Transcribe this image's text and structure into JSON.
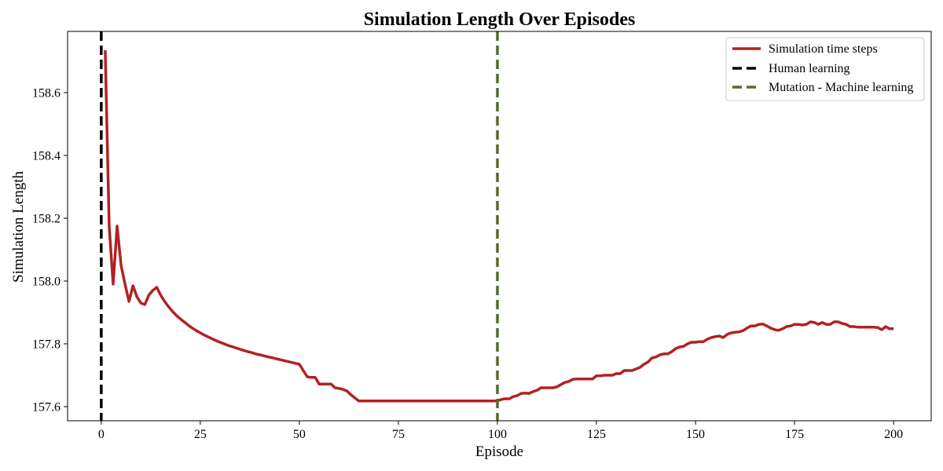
{
  "chart_data": {
    "type": "line",
    "title": "Simulation Length Over Episodes",
    "xlabel": "Episode",
    "ylabel": "Simulation Length",
    "xlim": [
      -8.5,
      209.5
    ],
    "ylim": [
      157.555,
      158.795
    ],
    "xticks": [
      0,
      25,
      50,
      75,
      100,
      125,
      150,
      175,
      200
    ],
    "yticks": [
      157.6,
      157.8,
      158.0,
      158.2,
      158.4,
      158.6
    ],
    "ytick_labels": [
      "157.6",
      "157.8",
      "158.0",
      "158.2",
      "158.4",
      "158.6"
    ],
    "grid": false,
    "legend_position": "top-right",
    "colors": {
      "series": "#b22222",
      "human_line": "#000000",
      "mutation_line": "#556b2f"
    },
    "series": [
      {
        "name": "Simulation time steps",
        "x": [
          1,
          2,
          3,
          4,
          5,
          6,
          7,
          8,
          9,
          10,
          11,
          12,
          13,
          14,
          15,
          16,
          17,
          18,
          19,
          20,
          21,
          22,
          23,
          24,
          25,
          26,
          27,
          28,
          29,
          30,
          31,
          32,
          33,
          34,
          35,
          36,
          37,
          38,
          39,
          40,
          41,
          42,
          43,
          44,
          45,
          46,
          47,
          48,
          49,
          50,
          51,
          52,
          53,
          54,
          55,
          56,
          57,
          58,
          59,
          60,
          61,
          62,
          63,
          64,
          65,
          66,
          67,
          68,
          69,
          70,
          71,
          72,
          73,
          74,
          75,
          76,
          77,
          78,
          79,
          80,
          81,
          82,
          83,
          84,
          85,
          86,
          87,
          88,
          89,
          90,
          91,
          92,
          93,
          94,
          95,
          96,
          97,
          98,
          99,
          100,
          101,
          102,
          103,
          104,
          105,
          106,
          107,
          108,
          109,
          110,
          111,
          112,
          113,
          114,
          115,
          116,
          117,
          118,
          119,
          120,
          121,
          122,
          123,
          124,
          125,
          126,
          127,
          128,
          129,
          130,
          131,
          132,
          133,
          134,
          135,
          136,
          137,
          138,
          139,
          140,
          141,
          142,
          143,
          144,
          145,
          146,
          147,
          148,
          149,
          150,
          151,
          152,
          153,
          154,
          155,
          156,
          157,
          158,
          159,
          160,
          161,
          162,
          163,
          164,
          165,
          166,
          167,
          168,
          169,
          170,
          171,
          172,
          173,
          174,
          175,
          176,
          177,
          178,
          179,
          180,
          181,
          182,
          183,
          184,
          185,
          186,
          187,
          188,
          189,
          190,
          191,
          192,
          193,
          194,
          195,
          196,
          197,
          198,
          199,
          200
        ],
        "y": [
          158.735,
          158.175,
          157.99,
          158.175,
          158.05,
          157.99,
          157.935,
          157.985,
          157.95,
          157.93,
          157.925,
          157.955,
          157.97,
          157.98,
          157.955,
          157.935,
          157.918,
          157.903,
          157.89,
          157.879,
          157.869,
          157.859,
          157.85,
          157.842,
          157.835,
          157.828,
          157.822,
          157.816,
          157.81,
          157.805,
          157.8,
          157.795,
          157.791,
          157.787,
          157.783,
          157.779,
          157.775,
          157.772,
          157.768,
          157.765,
          157.762,
          157.759,
          157.756,
          157.753,
          157.75,
          157.747,
          157.744,
          157.741,
          157.738,
          157.735,
          157.715,
          157.695,
          157.693,
          157.693,
          157.672,
          157.672,
          157.672,
          157.672,
          157.66,
          157.658,
          157.655,
          157.65,
          157.638,
          157.628,
          157.618,
          157.618,
          157.618,
          157.618,
          157.618,
          157.618,
          157.618,
          157.618,
          157.618,
          157.618,
          157.618,
          157.618,
          157.618,
          157.618,
          157.618,
          157.618,
          157.618,
          157.618,
          157.618,
          157.618,
          157.618,
          157.618,
          157.618,
          157.618,
          157.618,
          157.618,
          157.618,
          157.618,
          157.618,
          157.618,
          157.618,
          157.618,
          157.618,
          157.618,
          157.618,
          157.618,
          157.623,
          157.625,
          157.625,
          157.632,
          157.635,
          157.642,
          157.643,
          157.642,
          157.648,
          157.652,
          157.66,
          157.66,
          157.66,
          157.66,
          157.663,
          157.67,
          157.677,
          157.68,
          157.687,
          157.688,
          157.688,
          157.688,
          157.688,
          157.688,
          157.698,
          157.698,
          157.7,
          157.7,
          157.7,
          157.705,
          157.705,
          157.715,
          157.715,
          157.715,
          157.72,
          157.725,
          157.735,
          157.742,
          157.755,
          157.758,
          157.765,
          157.768,
          157.768,
          157.775,
          157.785,
          157.79,
          157.792,
          157.8,
          157.805,
          157.805,
          157.807,
          157.807,
          157.815,
          157.82,
          157.823,
          157.825,
          157.82,
          157.83,
          157.835,
          157.837,
          157.838,
          157.842,
          157.85,
          157.857,
          157.857,
          157.862,
          157.863,
          157.857,
          157.85,
          157.845,
          157.843,
          157.848,
          157.855,
          157.857,
          157.862,
          157.862,
          157.86,
          157.862,
          157.87,
          157.868,
          157.862,
          157.868,
          157.862,
          157.862,
          157.87,
          157.87,
          157.865,
          157.862,
          157.855,
          157.855,
          157.853,
          157.853,
          157.853,
          157.853,
          157.853,
          157.852,
          157.845,
          157.855,
          157.848,
          157.848
        ]
      }
    ],
    "vlines": [
      {
        "name": "Human learning",
        "x": 0,
        "style": "dashed"
      },
      {
        "name": "Mutation - Machine learning",
        "x": 100,
        "style": "dashed"
      }
    ]
  }
}
